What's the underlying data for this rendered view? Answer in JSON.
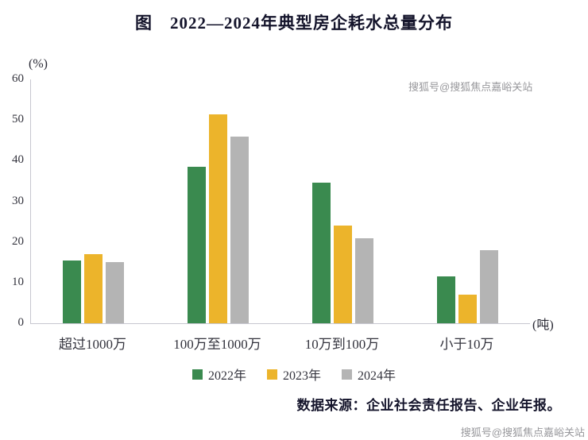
{
  "chart_data": {
    "type": "bar",
    "title": "图　2022—2024年典型房企耗水总量分布",
    "unit_y": "(%)",
    "unit_x": "(吨)",
    "categories": [
      "超过1000万",
      "100万至1000万",
      "10万到100万",
      "小于10万"
    ],
    "series": [
      {
        "name": "2022年",
        "color": "#3a8a4f",
        "values": [
          15.5,
          38.5,
          34.5,
          11.5
        ]
      },
      {
        "name": "2023年",
        "color": "#ecb42b",
        "values": [
          17,
          51.5,
          24,
          7
        ]
      },
      {
        "name": "2024年",
        "color": "#b4b4b4",
        "values": [
          15,
          46,
          21,
          18
        ]
      }
    ],
    "ylim": [
      0,
      60
    ],
    "yticks": [
      0,
      10,
      20,
      30,
      40,
      50,
      60
    ],
    "legend_position": "bottom",
    "grid": false
  },
  "source": "数据来源：企业社会责任报告、企业年报。",
  "watermark": "搜狐号@搜狐焦点嘉峪关站"
}
